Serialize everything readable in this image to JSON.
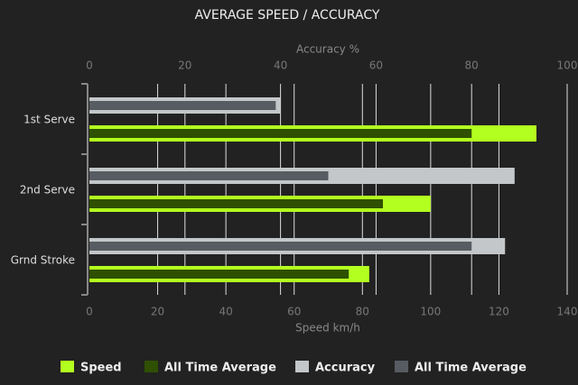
{
  "chart_data": {
    "type": "bar",
    "orientation": "horizontal",
    "title": "AVERAGE SPEED / ACCURACY",
    "categories": [
      "1st Serve",
      "2nd Serve",
      "Grnd Stroke"
    ],
    "xlabel": "Speed km/h",
    "x2label": "Accuracy %",
    "xlim": [
      0,
      140
    ],
    "xticks": [
      0,
      20,
      40,
      60,
      80,
      100,
      120,
      140
    ],
    "x2lim": [
      0,
      100
    ],
    "x2ticks": [
      0,
      20,
      40,
      60,
      80,
      100
    ],
    "grid": true,
    "legend": "bottom",
    "series": [
      {
        "name": "Speed",
        "color": "#b3ff1f",
        "values": [
          131,
          100,
          82
        ]
      },
      {
        "name": "All Time Average",
        "color": "#2e5000",
        "values": [
          112,
          86,
          76
        ]
      },
      {
        "name": "Accuracy",
        "color": "#c3c7c9",
        "axis": "x2",
        "values": [
          40,
          89,
          87
        ]
      },
      {
        "name": "All Time Average",
        "color": "#575c62",
        "axis": "x2",
        "values": [
          39,
          50,
          80
        ]
      }
    ]
  }
}
